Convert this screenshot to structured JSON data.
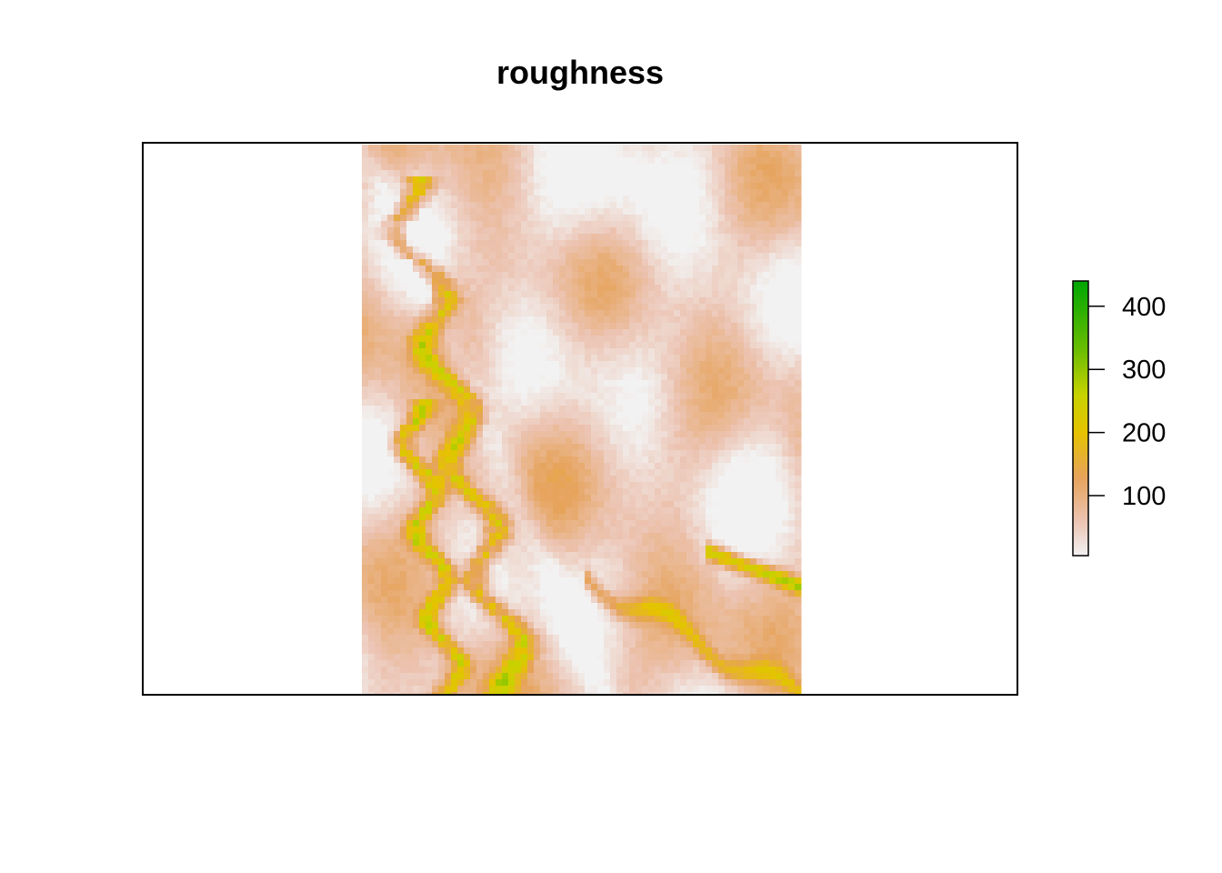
{
  "chart_data": {
    "type": "heatmap",
    "title": "roughness",
    "xlabel": "",
    "ylabel": "",
    "axes_shown": false,
    "grid": false,
    "legend": {
      "placement": "right",
      "type": "colorbar",
      "ticks": [
        100,
        200,
        300,
        400
      ],
      "tick_labels": [
        "100",
        "200",
        "300",
        "400"
      ],
      "range": [
        5,
        440
      ]
    },
    "colormap": {
      "name": "terrain (reversed)",
      "stops": [
        {
          "value": 5,
          "color": "#f2f2f2"
        },
        {
          "value": 60,
          "color": "#ecc4b3"
        },
        {
          "value": 130,
          "color": "#e6a35a"
        },
        {
          "value": 200,
          "color": "#e6c200"
        },
        {
          "value": 260,
          "color": "#c8d200"
        },
        {
          "value": 330,
          "color": "#6cbe00"
        },
        {
          "value": 440,
          "color": "#00a600"
        }
      ]
    },
    "raster": {
      "description_values": "roughness raster; mostly 20–150 with high-value ridges (200–440) along the western escarpment",
      "value_range": [
        5,
        440
      ]
    }
  }
}
